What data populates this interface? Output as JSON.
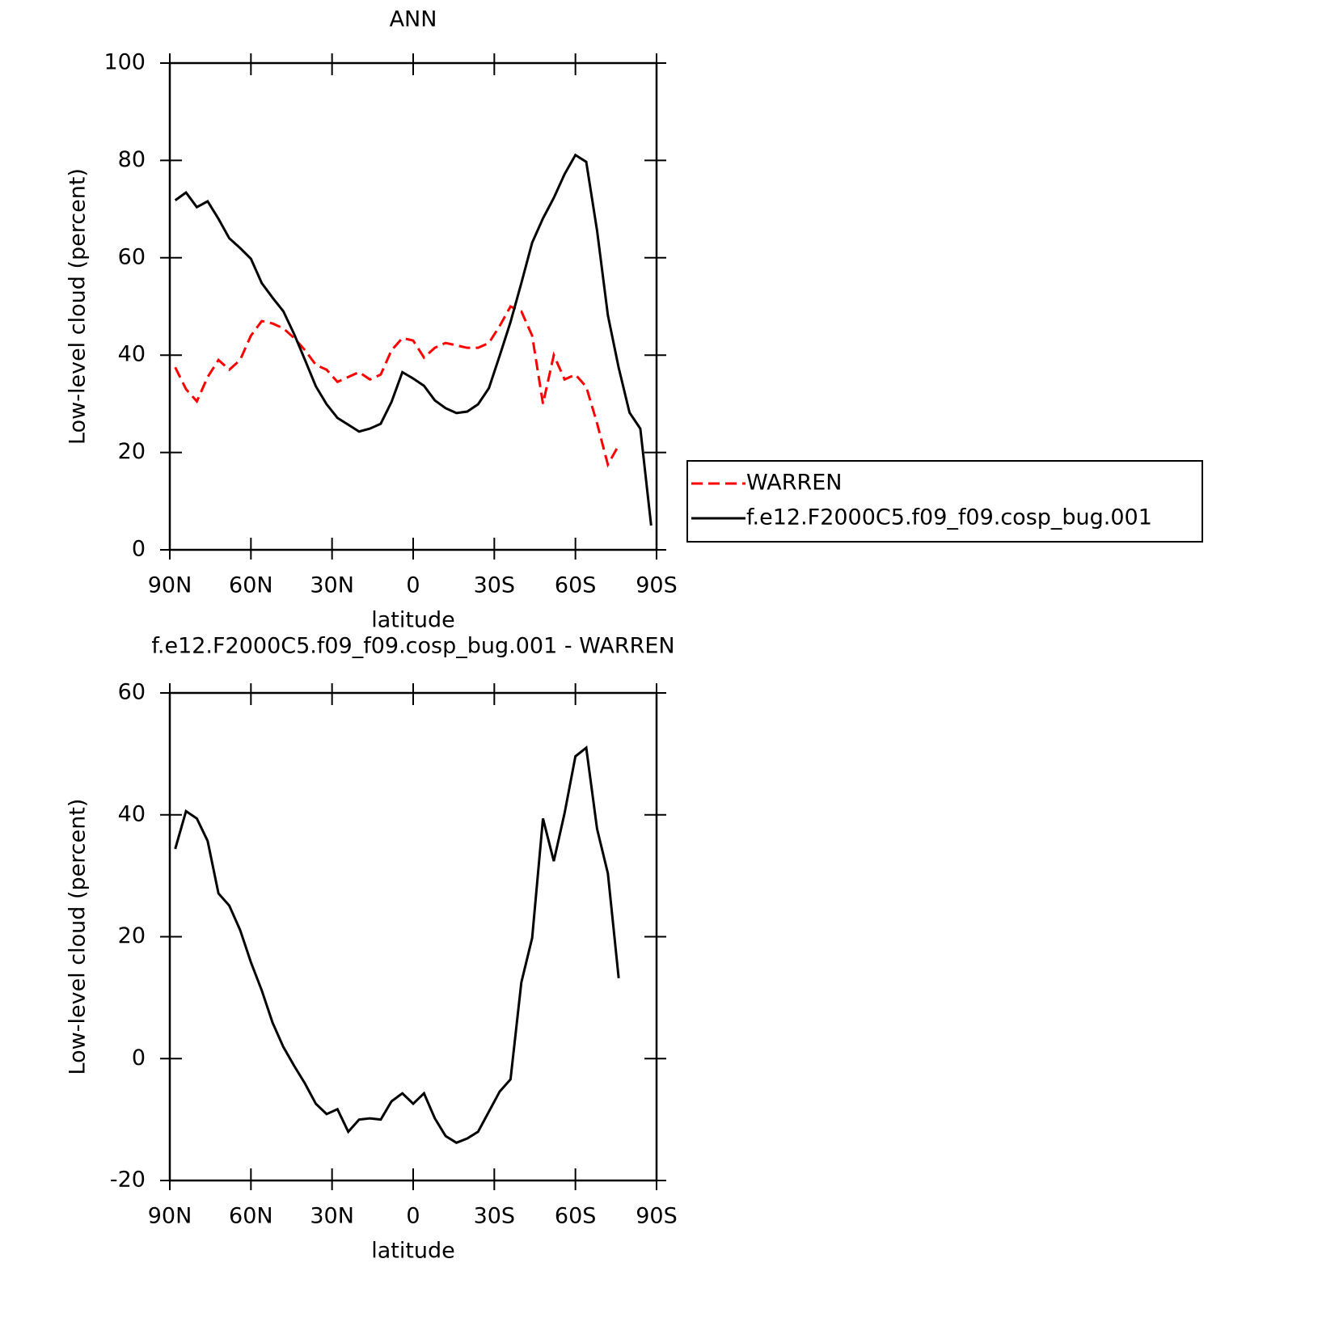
{
  "chart_data": [
    {
      "type": "line",
      "title": "ANN",
      "xlabel": "latitude",
      "ylabel": "Low-level cloud (percent)",
      "x": [
        88,
        84,
        80,
        76,
        72,
        68,
        64,
        60,
        56,
        52,
        48,
        44,
        40,
        36,
        32,
        28,
        24,
        20,
        16,
        12,
        8,
        4,
        0,
        -4,
        -8,
        -12,
        -16,
        -20,
        -24,
        -28,
        -32,
        -36,
        -40,
        -44,
        -48,
        -52,
        -56,
        -60,
        -64,
        -68,
        -72,
        -76,
        -80,
        -84,
        -88
      ],
      "series": [
        {
          "name": "WARREN",
          "color": "#ff0000",
          "linestyle": "dashed",
          "values": [
            37.5,
            33,
            30.5,
            35.5,
            39,
            37,
            39,
            44,
            47,
            46.5,
            45.5,
            43.5,
            41,
            38,
            37,
            34.5,
            35.5,
            36.5,
            35,
            36,
            41,
            43.5,
            43,
            39.5,
            41.5,
            42.5,
            42,
            41.5,
            41.5,
            42.5,
            46,
            50,
            49,
            44,
            30,
            40,
            35,
            36,
            33.5,
            26,
            17.5,
            21.5,
            null,
            null,
            null
          ]
        },
        {
          "name": "f.e12.F2000C5.f09_f09.cosp_bug.001",
          "color": "#000000",
          "linestyle": "solid",
          "values": [
            71.8,
            73.4,
            70.4,
            71.6,
            68,
            64,
            62,
            59.8,
            54.8,
            51.8,
            49,
            44.3,
            39,
            33.6,
            29.9,
            27.1,
            25.7,
            24.3,
            24.9,
            25.9,
            30.4,
            36.5,
            35.2,
            33.7,
            30.7,
            29.1,
            28.1,
            28.4,
            29.9,
            33.2,
            39.9,
            46.8,
            54.8,
            63.1,
            68.1,
            72.3,
            77.2,
            81.1,
            79.7,
            65.6,
            48.2,
            37.4,
            28.2,
            24.9,
            5
          ]
        }
      ],
      "xlim": [
        90,
        -90
      ],
      "xticks": [
        {
          "value": 90,
          "label": "90N"
        },
        {
          "value": 60,
          "label": "60N"
        },
        {
          "value": 30,
          "label": "30N"
        },
        0,
        {
          "value": -30,
          "label": "30S"
        },
        {
          "value": -60,
          "label": "60S"
        },
        {
          "value": -90,
          "label": "90S"
        }
      ],
      "ylim": [
        0,
        100
      ],
      "yticks": [
        0,
        20,
        40,
        60,
        80,
        100
      ],
      "legend": "right"
    },
    {
      "type": "line",
      "title": "f.e12.F2000C5.f09_f09.cosp_bug.001 - WARREN",
      "xlabel": "latitude",
      "ylabel": "Low-level cloud (percent)",
      "x": [
        88,
        84,
        80,
        76,
        72,
        68,
        64,
        60,
        56,
        52,
        48,
        44,
        40,
        36,
        32,
        28,
        24,
        20,
        16,
        12,
        8,
        4,
        0,
        -4,
        -8,
        -12,
        -16,
        -20,
        -24,
        -28,
        -32,
        -36,
        -40,
        -44,
        -48,
        -52,
        -56,
        -60,
        -64,
        -68,
        -72,
        -76,
        -80,
        -84,
        -88
      ],
      "series": [
        {
          "color": "#000000",
          "linestyle": "solid",
          "values": [
            34.4,
            40.6,
            39.4,
            35.7,
            27.1,
            25.1,
            21.1,
            15.8,
            11.2,
            5.9,
            1.9,
            -1.2,
            -4.1,
            -7.4,
            -9.1,
            -8.3,
            -12,
            -10,
            -9.8,
            -10,
            -7,
            -5.7,
            -7.4,
            -5.7,
            -9.8,
            -12.7,
            -13.8,
            -13.1,
            -12,
            -8.7,
            -5.4,
            -3.4,
            12.5,
            19.8,
            39.4,
            32.4,
            40.3,
            49.6,
            51,
            37.7,
            30.4,
            13.2,
            null,
            null,
            null
          ]
        }
      ],
      "xlim": [
        90,
        -90
      ],
      "xticks": [
        {
          "value": 90,
          "label": "90N"
        },
        {
          "value": 60,
          "label": "60N"
        },
        {
          "value": 30,
          "label": "30N"
        },
        0,
        {
          "value": -30,
          "label": "30S"
        },
        {
          "value": -60,
          "label": "60S"
        },
        {
          "value": -90,
          "label": "90S"
        }
      ],
      "ylim": [
        -20,
        60
      ],
      "yticks": [
        -20,
        0,
        20,
        40,
        60
      ]
    }
  ]
}
